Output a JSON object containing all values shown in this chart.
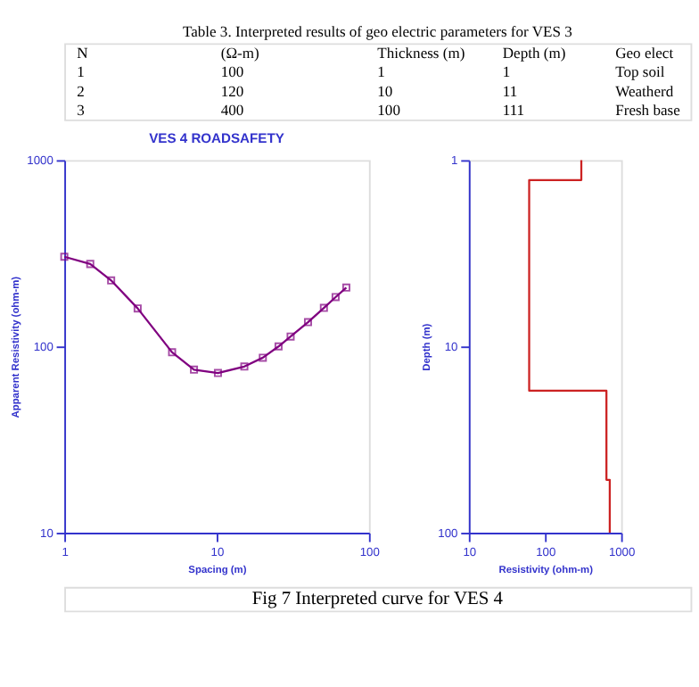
{
  "chart_data": [
    {
      "type": "other",
      "title": "Table 3.  Interpreted results of geo electric parameters for VES 3",
      "annotations": [
        "N",
        "(Ω-m)",
        "Thickness (m)",
        "Depth (m)",
        "Geo elect",
        "1",
        "100",
        "1",
        "1",
        "Top soil",
        "2",
        "120",
        "10",
        "11",
        "Weatherd",
        "3",
        "400",
        "100",
        "111",
        "Fresh base"
      ]
    },
    {
      "type": "line",
      "title": "VES 4 ROADSAFETY",
      "xlabel": "Spacing (m)",
      "ylabel": "Apparent Resistivity (ohm-m)",
      "log": "xy",
      "xlim": [
        1,
        100
      ],
      "ylim": [
        10,
        1000
      ],
      "xticks": [
        1,
        10,
        100
      ],
      "yticks": [
        10,
        100,
        1000
      ],
      "x": [
        1,
        1.48,
        2.03,
        3.03,
        5.1,
        7.1,
        10.2,
        15.2,
        20.1,
        25.5,
        30.6,
        39.8,
        50.6,
        60.4,
        71
      ],
      "series": [
        {
          "type": "line",
          "color": "#800080",
          "values": [
            303,
            277,
            226,
            160,
            93,
            75,
            72,
            78,
            87,
            100,
            113,
            135,
            161,
            184,
            207
          ]
        },
        {
          "type": "scatter",
          "color": "#800080",
          "marker": "square",
          "values": [
            303,
            277,
            226,
            160,
            93,
            75,
            72,
            78,
            87,
            100,
            113,
            135,
            161,
            184,
            207
          ]
        }
      ]
    },
    {
      "type": "line",
      "xlabel": "Resistivity (ohm-m)",
      "ylabel": "Depth (m)",
      "log": "xy",
      "xlim": [
        10,
        1000
      ],
      "ylim": [
        100,
        1
      ],
      "xticks": [
        10,
        100,
        1000
      ],
      "yticks": [
        1,
        10,
        100
      ],
      "x": [
        300,
        300,
        62,
        62,
        641,
        641,
        709,
        709
      ],
      "series": [
        {
          "color": "#cc2222",
          "values": [
            1,
            1.28,
            1.28,
            17.3,
            17.3,
            52,
            52,
            100
          ]
        }
      ]
    },
    {
      "type": "other",
      "annotations": [
        "Fig 7 Interpreted curve for VES 4"
      ]
    }
  ]
}
